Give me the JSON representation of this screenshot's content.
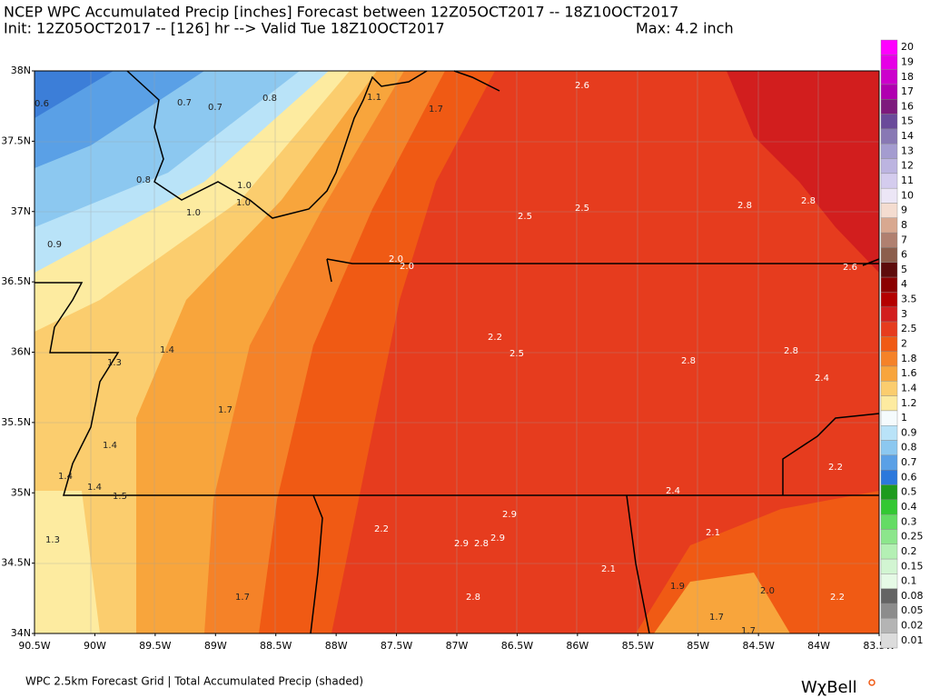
{
  "header": {
    "title": "NCEP WPC Accumulated Precip [inches] Forecast between 12Z05OCT2017 -- 18Z10OCT2017",
    "subtitle": "Init: 12Z05OCT2017 -- [126] hr --> Valid Tue 18Z10OCT2017",
    "max": "Max: 4.2 inch"
  },
  "axes": {
    "lat_labels": [
      "38N",
      "37.5N",
      "37N",
      "36.5N",
      "36N",
      "35.5N",
      "35N",
      "34.5N",
      "34N"
    ],
    "lon_labels": [
      "90.5W",
      "90W",
      "89.5W",
      "89W",
      "88.5W",
      "88W",
      "87.5W",
      "87W",
      "86.5W",
      "86W",
      "85.5W",
      "85W",
      "84.5W",
      "84W",
      "83.5W"
    ]
  },
  "colorbar": {
    "levels": [
      {
        "label": "20",
        "color": "#ff00ff"
      },
      {
        "label": "19",
        "color": "#e600e6"
      },
      {
        "label": "18",
        "color": "#cc00cc"
      },
      {
        "label": "17",
        "color": "#b000b0"
      },
      {
        "label": "16",
        "color": "#7d1a7d"
      },
      {
        "label": "15",
        "color": "#6a4a9a"
      },
      {
        "label": "14",
        "color": "#8878b4"
      },
      {
        "label": "13",
        "color": "#a49cd0"
      },
      {
        "label": "12",
        "color": "#bcb4e0"
      },
      {
        "label": "11",
        "color": "#d4ccee"
      },
      {
        "label": "10",
        "color": "#ece6f6"
      },
      {
        "label": "9",
        "color": "#f4dcd0"
      },
      {
        "label": "8",
        "color": "#d8a890"
      },
      {
        "label": "7",
        "color": "#b08070"
      },
      {
        "label": "6",
        "color": "#8c5e4c"
      },
      {
        "label": "5",
        "color": "#5e0c0c"
      },
      {
        "label": "4",
        "color": "#8b0000"
      },
      {
        "label": "3.5",
        "color": "#b40000"
      },
      {
        "label": "3",
        "color": "#d21e1e"
      },
      {
        "label": "2.5",
        "color": "#e63c1e"
      },
      {
        "label": "2",
        "color": "#f05a14"
      },
      {
        "label": "1.8",
        "color": "#f58228"
      },
      {
        "label": "1.6",
        "color": "#f8a53c"
      },
      {
        "label": "1.4",
        "color": "#fbcd6e"
      },
      {
        "label": "1.2",
        "color": "#fdeba0"
      },
      {
        "label": "1",
        "color": "#f5fbfd"
      },
      {
        "label": "0.9",
        "color": "#b9e3f8"
      },
      {
        "label": "0.8",
        "color": "#8cc8f0"
      },
      {
        "label": "0.7",
        "color": "#5aa0e6"
      },
      {
        "label": "0.6",
        "color": "#2c78dc"
      },
      {
        "label": "0.5",
        "color": "#1e9b1e"
      },
      {
        "label": "0.4",
        "color": "#32c832"
      },
      {
        "label": "0.3",
        "color": "#64dc64"
      },
      {
        "label": "0.25",
        "color": "#8ce68c"
      },
      {
        "label": "0.2",
        "color": "#b4f0b4"
      },
      {
        "label": "0.15",
        "color": "#d2f5d2"
      },
      {
        "label": "0.1",
        "color": "#e6fae6"
      },
      {
        "label": "0.08",
        "color": "#646464"
      },
      {
        "label": "0.05",
        "color": "#8c8c8c"
      },
      {
        "label": "0.02",
        "color": "#b4b4b4"
      },
      {
        "label": "0.01",
        "color": "#dcdcdc"
      }
    ]
  },
  "map_labels": [
    "0.6",
    "0.7",
    "0.7",
    "0.8",
    "1.1",
    "1.7",
    "2.6",
    "0.8",
    "1.0",
    "1.0",
    "1.0",
    "2.5",
    "2.5",
    "2.8",
    "2.8",
    "0.9",
    "2.0",
    "2.0",
    "2.6",
    "2.2",
    "2.5",
    "1.4",
    "1.3",
    "2.8",
    "2.8",
    "2.4",
    "1.7",
    "1.4",
    "1.4",
    "1.4",
    "1.5",
    "2.2",
    "2.4",
    "2.2",
    "2.9",
    "2.9",
    "2.8",
    "2.9",
    "2.1",
    "1.3",
    "2.1",
    "1.9",
    "2.0",
    "2.2",
    "1.7",
    "2.8",
    "1.7",
    "1.7"
  ],
  "footer": {
    "caption": "WPC 2.5km Forecast Grid | Total Accumulated Precip (shaded)",
    "logo": "WχBell"
  }
}
